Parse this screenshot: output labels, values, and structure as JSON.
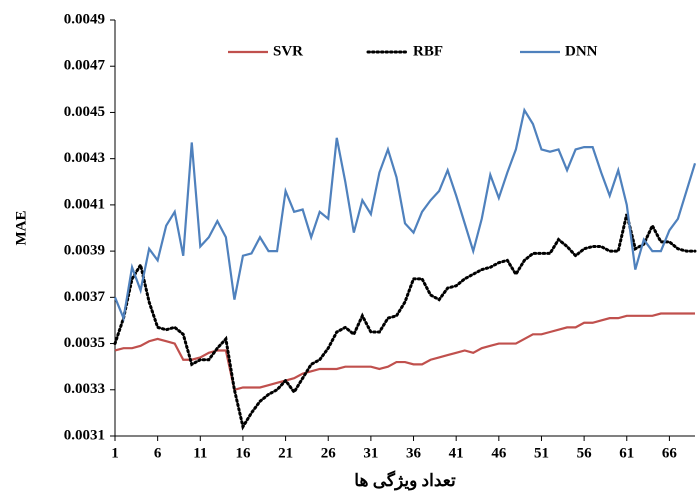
{
  "chart_data": {
    "type": "line",
    "x_label": "تعداد ویژگی ها",
    "y_label": "MAE",
    "x": [
      1,
      2,
      3,
      4,
      5,
      6,
      7,
      8,
      9,
      10,
      11,
      12,
      13,
      14,
      15,
      16,
      17,
      18,
      19,
      20,
      21,
      22,
      23,
      24,
      25,
      26,
      27,
      28,
      29,
      30,
      31,
      32,
      33,
      34,
      35,
      36,
      37,
      38,
      39,
      40,
      41,
      42,
      43,
      44,
      45,
      46,
      47,
      48,
      49,
      50,
      51,
      52,
      53,
      54,
      55,
      56,
      57,
      58,
      59,
      60,
      61,
      62,
      63,
      64,
      65,
      66,
      67,
      68,
      69
    ],
    "xlim": [
      1,
      69
    ],
    "xticks": [
      1,
      6,
      11,
      16,
      21,
      26,
      31,
      36,
      41,
      46,
      51,
      56,
      61,
      66
    ],
    "ylim": [
      0.0031,
      0.0049
    ],
    "yticks": [
      0.0031,
      0.0033,
      0.0035,
      0.0037,
      0.0039,
      0.0041,
      0.0043,
      0.0045,
      0.0047,
      0.0049
    ],
    "grid": false,
    "legend": "top",
    "series": [
      {
        "name": "SVR",
        "color": "#c0504d",
        "dash": "solid",
        "values": [
          0.00347,
          0.00348,
          0.00348,
          0.00349,
          0.00351,
          0.00352,
          0.00351,
          0.0035,
          0.00343,
          0.00343,
          0.00344,
          0.00346,
          0.00347,
          0.00347,
          0.0033,
          0.00331,
          0.00331,
          0.00331,
          0.00332,
          0.00333,
          0.00334,
          0.00335,
          0.00337,
          0.00338,
          0.00339,
          0.00339,
          0.00339,
          0.0034,
          0.0034,
          0.0034,
          0.0034,
          0.00339,
          0.0034,
          0.00342,
          0.00342,
          0.00341,
          0.00341,
          0.00343,
          0.00344,
          0.00345,
          0.00346,
          0.00347,
          0.00346,
          0.00348,
          0.00349,
          0.0035,
          0.0035,
          0.0035,
          0.00352,
          0.00354,
          0.00354,
          0.00355,
          0.00356,
          0.00357,
          0.00357,
          0.00359,
          0.00359,
          0.0036,
          0.00361,
          0.00361,
          0.00362,
          0.00362,
          0.00362,
          0.00362,
          0.00363,
          0.00363,
          0.00363,
          0.00363,
          0.00363
        ]
      },
      {
        "name": "RBF",
        "color": "#000000",
        "dash": "dotted",
        "values": [
          0.0035,
          0.00361,
          0.00378,
          0.00384,
          0.00368,
          0.00357,
          0.00356,
          0.00357,
          0.00354,
          0.00341,
          0.00343,
          0.00343,
          0.00348,
          0.00352,
          0.0033,
          0.00314,
          0.0032,
          0.00325,
          0.00328,
          0.0033,
          0.00334,
          0.00329,
          0.00335,
          0.00341,
          0.00343,
          0.00348,
          0.00355,
          0.00357,
          0.00354,
          0.00362,
          0.00355,
          0.00355,
          0.00361,
          0.00362,
          0.00368,
          0.00378,
          0.00378,
          0.00371,
          0.00369,
          0.00374,
          0.00375,
          0.00378,
          0.0038,
          0.00382,
          0.00383,
          0.00385,
          0.00386,
          0.0038,
          0.00386,
          0.00389,
          0.00389,
          0.00389,
          0.00395,
          0.00392,
          0.00388,
          0.00391,
          0.00392,
          0.00392,
          0.0039,
          0.0039,
          0.00406,
          0.00391,
          0.00393,
          0.00401,
          0.00394,
          0.00394,
          0.00391,
          0.0039,
          0.0039
        ]
      },
      {
        "name": "DNN",
        "color": "#4f81bd",
        "dash": "solid",
        "values": [
          0.0037,
          0.00361,
          0.00383,
          0.00373,
          0.00391,
          0.00386,
          0.00401,
          0.00407,
          0.00388,
          0.00437,
          0.00392,
          0.00396,
          0.00403,
          0.00396,
          0.00369,
          0.00388,
          0.00389,
          0.00396,
          0.0039,
          0.0039,
          0.00416,
          0.00407,
          0.00408,
          0.00396,
          0.00407,
          0.00404,
          0.00439,
          0.0042,
          0.00398,
          0.00412,
          0.00406,
          0.00424,
          0.00434,
          0.00422,
          0.00402,
          0.00398,
          0.00407,
          0.00412,
          0.00416,
          0.00425,
          0.00414,
          0.00402,
          0.0039,
          0.00404,
          0.00423,
          0.00413,
          0.00424,
          0.00434,
          0.00451,
          0.00445,
          0.00434,
          0.00433,
          0.00434,
          0.00425,
          0.00434,
          0.00435,
          0.00435,
          0.00424,
          0.00414,
          0.00425,
          0.0041,
          0.00382,
          0.00395,
          0.0039,
          0.0039,
          0.00399,
          0.00404,
          0.00416,
          0.00428
        ]
      }
    ]
  }
}
